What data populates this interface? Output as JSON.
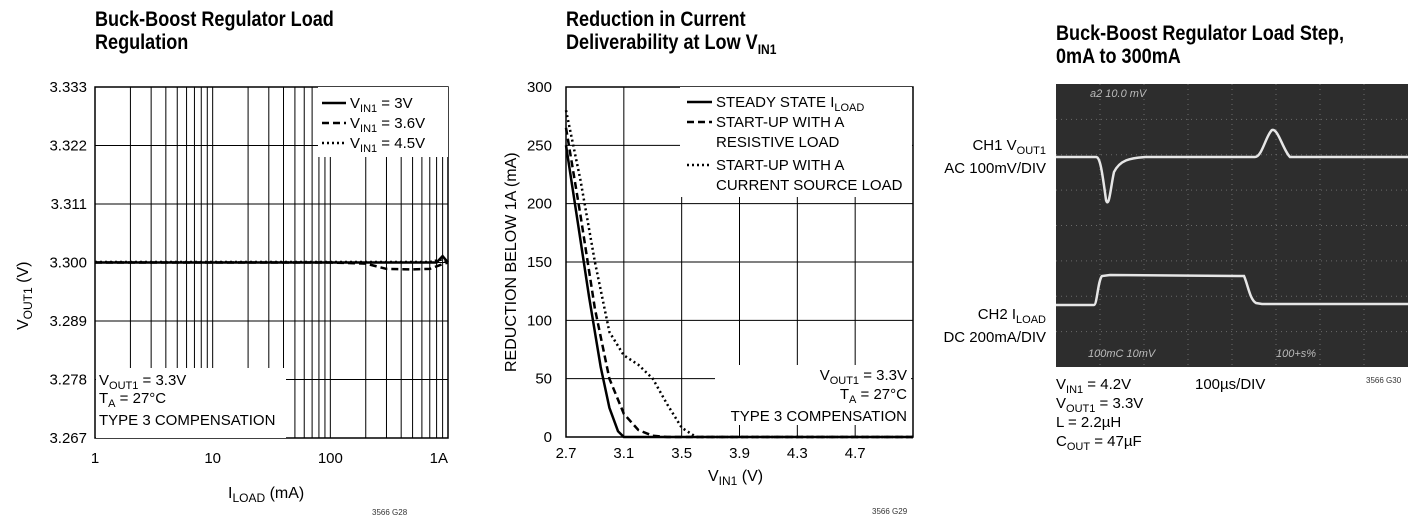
{
  "chart_data": [
    {
      "type": "line",
      "title_lines": [
        "Buck-Boost Regulator Load",
        "Regulation"
      ],
      "xlabel_main": "I",
      "xlabel_sub": "LOAD",
      "xlabel_unit": " (mA)",
      "ylabel_main": "V",
      "ylabel_sub": "OUT1",
      "ylabel_unit": " (V)",
      "xscale": "log",
      "xlim": [
        1,
        1000
      ],
      "ylim": [
        3.267,
        3.333
      ],
      "xtick_values": [
        1,
        10,
        100,
        1000
      ],
      "xtick_labels": [
        "1",
        "10",
        "100",
        "1A"
      ],
      "ytick_values": [
        3.267,
        3.278,
        3.289,
        3.3,
        3.311,
        3.322,
        3.333
      ],
      "ytick_labels": [
        "3.267",
        "3.278",
        "3.289",
        "3.300",
        "3.311",
        "3.322",
        "3.333"
      ],
      "series": [
        {
          "name_main": "V",
          "name_sub": "IN1",
          "name_rest": " = 3V",
          "dash": "solid",
          "x": [
            1,
            10,
            100,
            300,
            600,
            800,
            900,
            1000
          ],
          "y": [
            3.3,
            3.3,
            3.3,
            3.3,
            3.3,
            3.3,
            3.3012,
            3.3
          ]
        },
        {
          "name_main": "V",
          "name_sub": "IN1",
          "name_rest": " = 3.6V",
          "dash": "dashed",
          "x": [
            1,
            10,
            100,
            200,
            300,
            500,
            700,
            850,
            1000
          ],
          "y": [
            3.3,
            3.3,
            3.3,
            3.2998,
            3.2988,
            3.2987,
            3.2988,
            3.2995,
            3.3
          ]
        },
        {
          "name_main": "V",
          "name_sub": "IN1",
          "name_rest": " = 4.5V",
          "dash": "dotted",
          "x": [
            1,
            10,
            100,
            400,
            700,
            900,
            1000
          ],
          "y": [
            3.3001,
            3.3001,
            3.3001,
            3.3001,
            3.3001,
            3.3006,
            3.3001
          ]
        }
      ],
      "annotation": [
        {
          "main": "V",
          "sub": "OUT1",
          "rest": " = 3.3V"
        },
        {
          "main": "T",
          "sub": "A",
          "rest": " = 27°C"
        },
        {
          "main": "TYPE 3 COMPENSATION",
          "sub": "",
          "rest": ""
        }
      ],
      "figure_id": "3566 G28"
    },
    {
      "type": "line",
      "title_line1": "Reduction in Current",
      "title_line2_main": "Deliverability at Low V",
      "title_line2_sub": "IN1",
      "xlabel_main": "V",
      "xlabel_sub": "IN1",
      "xlabel_unit": " (V)",
      "ylabel": "REDUCTION BELOW 1A (mA)",
      "xlim": [
        2.7,
        5.1
      ],
      "ylim": [
        0,
        300
      ],
      "xtick_values": [
        2.7,
        3.1,
        3.5,
        3.9,
        4.3,
        4.7
      ],
      "xtick_labels": [
        "2.7",
        "3.1",
        "3.5",
        "3.9",
        "4.3",
        "4.7"
      ],
      "ytick_values": [
        0,
        50,
        100,
        150,
        200,
        250,
        300
      ],
      "ytick_labels": [
        "0",
        "50",
        "100",
        "150",
        "200",
        "250",
        "300"
      ],
      "series": [
        {
          "name_lines": [
            {
              "main": "STEADY STATE I",
              "sub": "LOAD"
            }
          ],
          "dash": "solid",
          "x": [
            2.7,
            2.78,
            2.86,
            2.94,
            3.0,
            3.06,
            3.1,
            5.1
          ],
          "y": [
            250,
            185,
            120,
            60,
            25,
            5,
            0,
            0
          ]
        },
        {
          "name_lines": [
            {
              "main": "START-UP WITH A",
              "sub": ""
            },
            {
              "main": "RESISTIVE LOAD",
              "sub": ""
            }
          ],
          "dash": "dashed",
          "x": [
            2.7,
            2.8,
            2.9,
            3.0,
            3.1,
            3.2,
            3.3,
            3.4,
            5.1
          ],
          "y": [
            265,
            190,
            110,
            50,
            20,
            6,
            1,
            0,
            0
          ]
        },
        {
          "name_lines": [
            {
              "main": "START-UP WITH A",
              "sub": ""
            },
            {
              "main": "CURRENT SOURCE LOAD",
              "sub": ""
            }
          ],
          "dash": "dotted",
          "x": [
            2.7,
            2.8,
            2.9,
            3.0,
            3.1,
            3.2,
            3.3,
            3.4,
            3.5,
            3.6,
            5.1
          ],
          "y": [
            280,
            220,
            150,
            90,
            70,
            62,
            50,
            28,
            8,
            0,
            0
          ]
        }
      ],
      "annotation": [
        {
          "main": "V",
          "sub": "OUT1",
          "rest": " = 3.3V"
        },
        {
          "main": "T",
          "sub": "A",
          "rest": " = 27°C"
        },
        {
          "main": "TYPE 3 COMPENSATION",
          "sub": "",
          "rest": ""
        }
      ],
      "figure_id": "3566 G29"
    }
  ],
  "scope": {
    "title_lines": [
      "Buck-Boost Regulator Load Step,",
      "0mA to 300mA"
    ],
    "ch1_line1_main": "CH1 V",
    "ch1_line1_sub": "OUT1",
    "ch1_line2": "AC 100mV/DIV",
    "ch2_line1_main": "CH2 I",
    "ch2_line1_sub": "LOAD",
    "ch2_line2": "DC 200mA/DIV",
    "screen_text_top": "a2   10.0 mV",
    "screen_text_bottom_left": "100mC  10mV",
    "screen_text_bottom_right": "100+s%",
    "time_scale": "100µs/DIV",
    "conditions": [
      {
        "main": "V",
        "sub": "IN1",
        "rest": " = 4.2V"
      },
      {
        "main": "V",
        "sub": "OUT1",
        "rest": " = 3.3V"
      },
      {
        "main": "L = 2.2µH",
        "sub": "",
        "rest": ""
      },
      {
        "main": "C",
        "sub": "OUT",
        "rest": " = 47µF"
      }
    ],
    "figure_id": "3566 G30"
  }
}
